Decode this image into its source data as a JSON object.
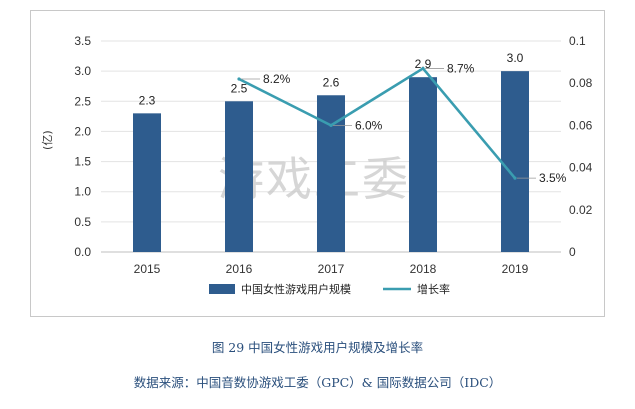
{
  "chart_data": {
    "type": "bar",
    "categories": [
      "2015",
      "2016",
      "2017",
      "2018",
      "2019"
    ],
    "series": [
      {
        "name": "中国女性游戏用户规模",
        "type": "bar",
        "axis": "left",
        "values": [
          2.3,
          2.5,
          2.6,
          2.9,
          3.0
        ],
        "labels": [
          "2.3",
          "2.5",
          "2.6",
          "2.9",
          "3.0"
        ],
        "color": "#2e5c8e"
      },
      {
        "name": "增长率",
        "type": "line",
        "axis": "right",
        "values": [
          null,
          0.082,
          0.06,
          0.087,
          0.035
        ],
        "labels": [
          "",
          "8.2%",
          "6.0%",
          "8.7%",
          "3.5%"
        ],
        "color": "#3a9db0"
      }
    ],
    "ylabel": "(亿)",
    "ylim": [
      0,
      3.5
    ],
    "y_ticks": [
      "0.0",
      "0.5",
      "1.0",
      "1.5",
      "2.0",
      "2.5",
      "3.0",
      "3.5"
    ],
    "y2lim": [
      0,
      0.1
    ],
    "y2_ticks": [
      "0",
      "0.02",
      "0.04",
      "0.06",
      "0.08",
      "0.1"
    ],
    "grid": true,
    "legend": "bottom",
    "watermark": "游戏工委"
  },
  "caption": "图 29  中国女性游戏用户规模及增长率",
  "source": "数据来源：中国音数协游戏工委（GPC）& 国际数据公司（IDC）"
}
